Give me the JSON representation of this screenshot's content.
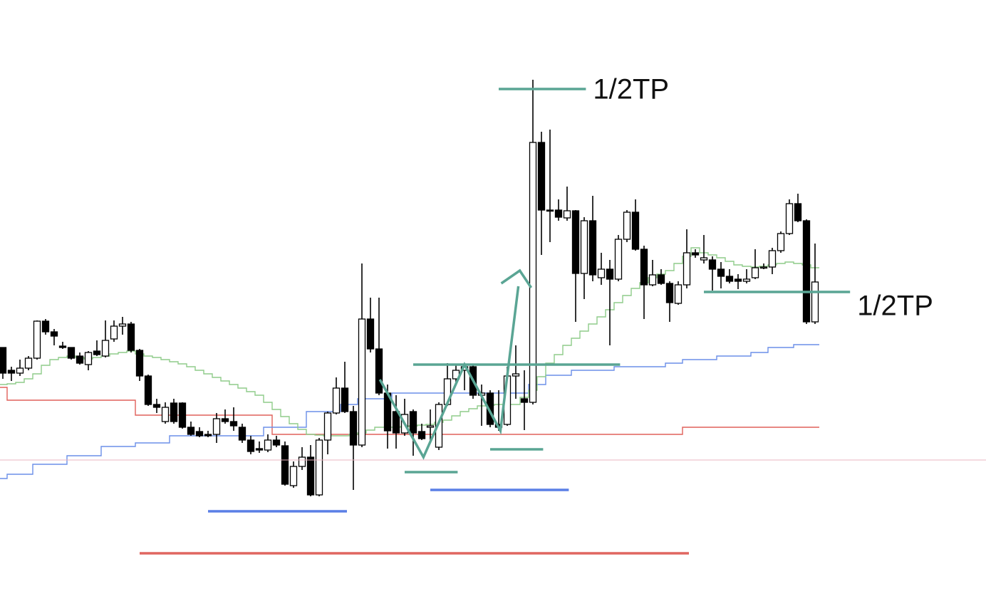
{
  "chart_data": {
    "type": "candlestick",
    "xlim": [
      -0.333,
      115
    ],
    "ylim": [
      0,
      844
    ],
    "up_color": "#ffffff",
    "down_color": "#000000",
    "open": [
      356,
      324,
      320,
      327,
      341,
      393,
      378,
      358,
      356,
      344,
      332,
      351,
      344,
      368,
      386,
      389,
      352,
      316,
      276,
      252,
      278,
      278,
      244,
      238,
      234,
      234,
      256,
      252,
      244,
      226,
      214,
      212,
      226,
      218,
      162,
      189,
      202,
      149,
      226,
      264,
      299,
      266,
      219,
      396,
      354,
      292,
      266,
      236,
      266,
      238,
      244,
      216,
      276,
      312,
      324,
      329,
      289,
      292,
      248,
      248,
      316,
      284,
      279,
      644,
      549,
      549,
      538,
      548,
      460,
      534,
      454,
      466,
      452,
      508,
      546,
      494,
      444,
      458,
      446,
      418,
      444,
      489,
      479,
      479,
      466,
      456,
      452,
      449,
      454,
      468,
      469,
      492,
      516,
      558,
      534,
      392
    ],
    "high": [
      356,
      329,
      339,
      344,
      394,
      396,
      382,
      364,
      356,
      349,
      351,
      366,
      394,
      394,
      399,
      392,
      354,
      318,
      284,
      279,
      284,
      279,
      252,
      244,
      239,
      264,
      269,
      272,
      249,
      232,
      224,
      234,
      232,
      224,
      196,
      216,
      219,
      229,
      266,
      314,
      336,
      274,
      474,
      426,
      426,
      304,
      289,
      284,
      269,
      249,
      269,
      279,
      334,
      332,
      334,
      332,
      304,
      296,
      296,
      329,
      359,
      324,
      732,
      659,
      662,
      564,
      582,
      549,
      539,
      569,
      489,
      479,
      514,
      549,
      564,
      499,
      479,
      466,
      449,
      449,
      522,
      494,
      514,
      484,
      476,
      466,
      459,
      466,
      494,
      474,
      496,
      519,
      564,
      572,
      536,
      502
    ],
    "low": [
      312,
      309,
      316,
      324,
      339,
      374,
      359,
      354,
      339,
      332,
      324,
      344,
      342,
      364,
      374,
      349,
      309,
      274,
      264,
      249,
      249,
      242,
      232,
      230,
      230,
      222,
      249,
      239,
      222,
      206,
      208,
      209,
      216,
      162,
      159,
      184,
      147,
      147,
      206,
      262,
      264,
      156,
      216,
      349,
      289,
      214,
      214,
      232,
      204,
      226,
      226,
      212,
      274,
      304,
      296,
      284,
      246,
      244,
      239,
      246,
      284,
      240,
      276,
      486,
      504,
      534,
      534,
      392,
      424,
      449,
      444,
      359,
      449,
      504,
      492,
      396,
      442,
      444,
      392,
      416,
      439,
      482,
      474,
      436,
      439,
      446,
      438,
      446,
      452,
      466,
      459,
      489,
      514,
      532,
      389,
      389
    ],
    "close": [
      320,
      320,
      327,
      341,
      393,
      378,
      372,
      356,
      341,
      334,
      349,
      346,
      366,
      386,
      389,
      352,
      316,
      276,
      272,
      272,
      252,
      244,
      234,
      232,
      232,
      256,
      252,
      246,
      226,
      210,
      212,
      226,
      219,
      164,
      189,
      202,
      149,
      226,
      264,
      299,
      266,
      219,
      396,
      354,
      292,
      239,
      236,
      262,
      236,
      228,
      246,
      276,
      312,
      324,
      329,
      289,
      292,
      248,
      244,
      316,
      319,
      279,
      644,
      549,
      548,
      539,
      548,
      460,
      534,
      458,
      466,
      452,
      508,
      546,
      494,
      444,
      458,
      446,
      419,
      444,
      489,
      486,
      482,
      466,
      456,
      449,
      449,
      452,
      468,
      469,
      492,
      516,
      558,
      534,
      392,
      448
    ],
    "series": [
      {
        "color": "#e0605a",
        "values": [
          300,
          282,
          282,
          282,
          282,
          282,
          282,
          282,
          282,
          282,
          282,
          282,
          282,
          282,
          282,
          282,
          261,
          261,
          261,
          261,
          261,
          261,
          261,
          261,
          261,
          261,
          261,
          261,
          261,
          261,
          261,
          261,
          234,
          234,
          234,
          234,
          234,
          234,
          234,
          234,
          234,
          234,
          234,
          234,
          234,
          234,
          234,
          234,
          234,
          234,
          234,
          234,
          234,
          234,
          234,
          234,
          234,
          234,
          234,
          234,
          234,
          234,
          234,
          234,
          234,
          234,
          234,
          234,
          234,
          234,
          234,
          234,
          234,
          234,
          234,
          234,
          234,
          234,
          234,
          234,
          244,
          244,
          244,
          244,
          244,
          244,
          244,
          244,
          244,
          244,
          244,
          244,
          244,
          244,
          244,
          244
        ]
      },
      {
        "color": "#6b8fe8",
        "values": [
          172,
          178,
          178,
          178,
          192,
          192,
          192,
          192,
          204,
          204,
          204,
          204,
          217,
          217,
          217,
          217,
          222,
          222,
          222,
          222,
          232,
          232,
          232,
          232,
          232,
          232,
          232,
          232,
          232,
          232,
          232,
          244,
          244,
          244,
          244,
          244,
          266,
          266,
          266,
          266,
          276,
          276,
          284,
          284,
          284,
          284,
          292,
          292,
          292,
          292,
          292,
          292,
          292,
          292,
          292,
          292,
          292,
          292,
          292,
          292,
          292,
          292,
          304,
          304,
          317,
          317,
          317,
          324,
          324,
          324,
          324,
          324,
          329,
          329,
          329,
          329,
          329,
          329,
          334,
          334,
          339,
          339,
          339,
          339,
          344,
          344,
          344,
          344,
          349,
          349,
          356,
          356,
          356,
          360,
          360,
          360
        ]
      },
      {
        "color": "#8fcc8a",
        "values": [
          304,
          305,
          307,
          312,
          319,
          331,
          339,
          342,
          344,
          342,
          340,
          342,
          344,
          347,
          349,
          351,
          347,
          344,
          342,
          339,
          336,
          333,
          329,
          324,
          319,
          314,
          309,
          304,
          299,
          294,
          289,
          279,
          269,
          259,
          249,
          241,
          234,
          233,
          232,
          232,
          232,
          234,
          236,
          240,
          244,
          244,
          244,
          245,
          246,
          247,
          248,
          251,
          254,
          260,
          266,
          270,
          274,
          275,
          276,
          276,
          276,
          286,
          296,
          315,
          334,
          346,
          359,
          369,
          379,
          389,
          399,
          409,
          419,
          429,
          439,
          447,
          454,
          459,
          464,
          474,
          484,
          496,
          489,
          486,
          482,
          477,
          472,
          470,
          469,
          470,
          472,
          474,
          476,
          474,
          472,
          468
        ]
      }
    ],
    "levels": [
      {
        "value": 719,
        "x": [
          58,
          68.2
        ],
        "color": "#5aa594",
        "label": "1/2TP"
      },
      {
        "value": 434,
        "x": [
          82,
          99.1
        ],
        "color": "#5aa594",
        "label": "1/2TP"
      },
      {
        "value": 332,
        "x": [
          48,
          72.2
        ],
        "color": "#5aa594"
      },
      {
        "value": 181,
        "x": [
          47,
          53.2
        ],
        "color": "#5aa594"
      },
      {
        "value": 213,
        "x": [
          57,
          63.2
        ],
        "color": "#5aa594"
      },
      {
        "value": 126,
        "x": [
          24,
          40.25
        ],
        "color": "#5a7fe6"
      },
      {
        "value": 156,
        "x": [
          50,
          66.2
        ],
        "color": "#5a7fe6"
      },
      {
        "value": 67,
        "x": [
          16,
          80.25
        ],
        "color": "#e06660"
      },
      {
        "value": 198,
        "x": [
          -0.333,
          115
        ],
        "color": "#e8b4c0"
      }
    ],
    "zigzag": {
      "color": "#5aa594",
      "x": [
        44.1,
        49.2,
        54,
        58.2,
        60.3
      ],
      "values": [
        311,
        202,
        332,
        239,
        442
      ]
    }
  }
}
